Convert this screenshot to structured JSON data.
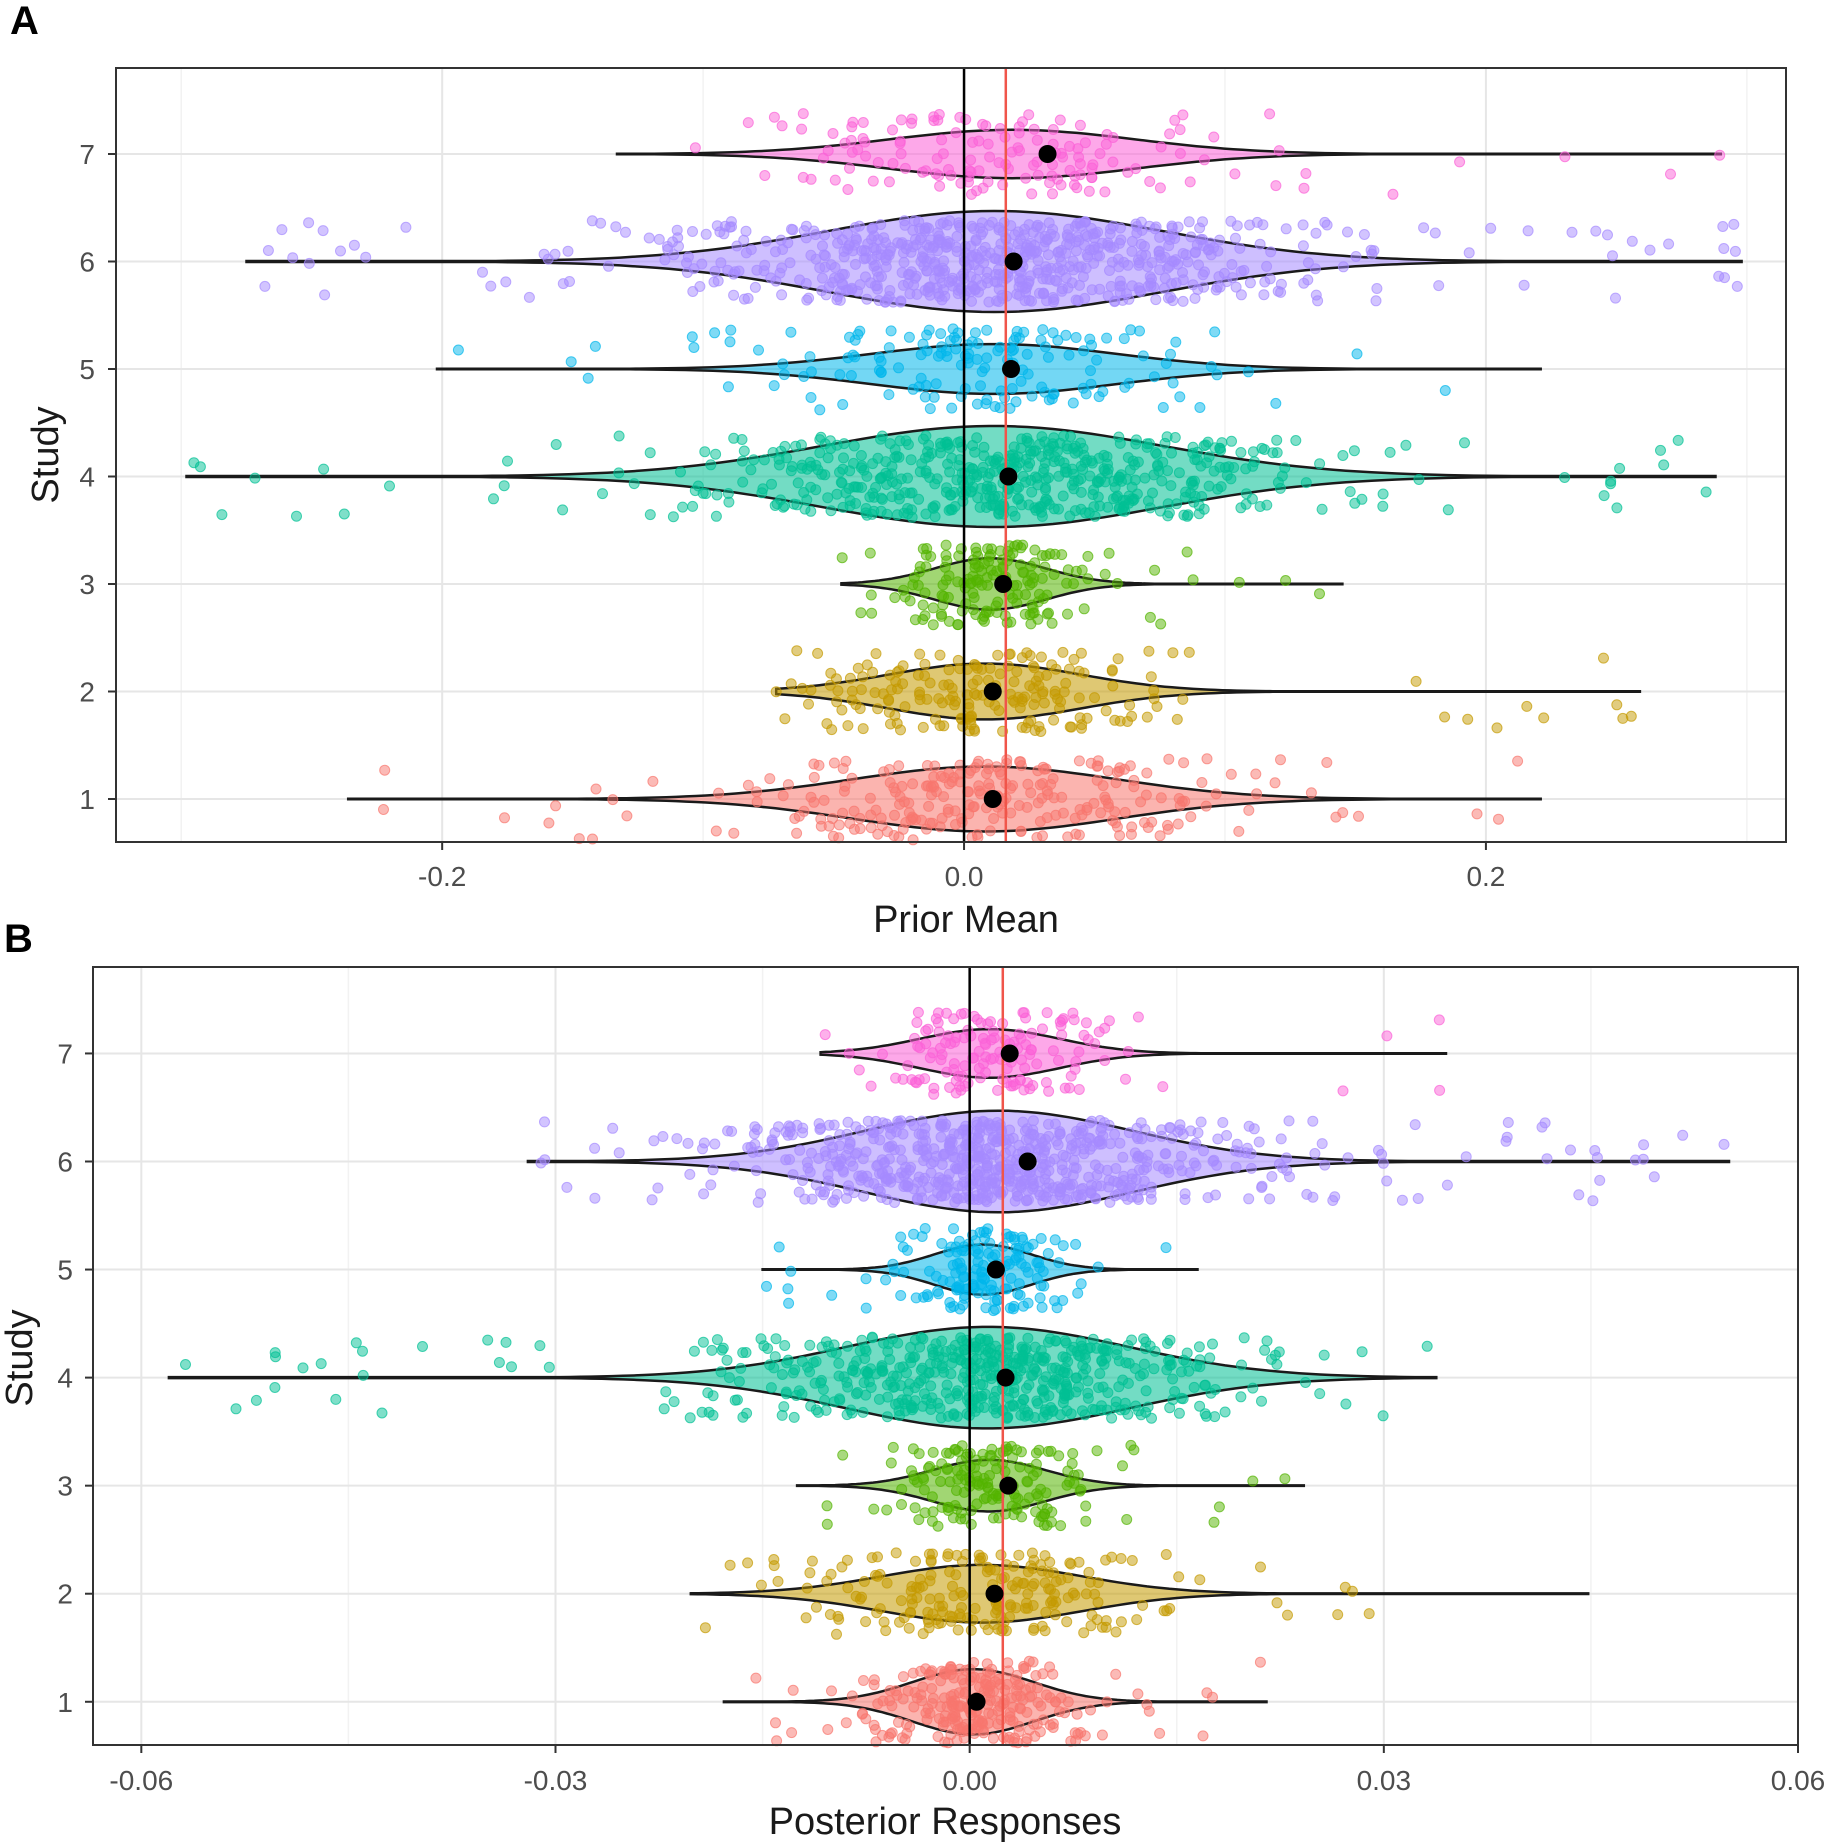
{
  "chart_data": [
    {
      "panel": "A",
      "type": "violin",
      "xlabel": "Prior Mean",
      "ylabel": "Study",
      "xlim": [
        -0.325,
        0.315
      ],
      "xticks": [
        -0.2,
        0.0,
        0.2
      ],
      "xtick_labels": [
        "-0.2",
        "0.0",
        "0.2"
      ],
      "categories": [
        "1",
        "2",
        "3",
        "4",
        "5",
        "6",
        "7"
      ],
      "vline_black": 0.0,
      "vline_red": 0.016,
      "series": [
        {
          "name": "1",
          "color": "#F8766D",
          "range": [
            -0.236,
            0.221
          ],
          "mean": 0.011,
          "n_points": 260
        },
        {
          "name": "2",
          "color": "#C49A00",
          "range": [
            -0.072,
            0.259
          ],
          "mean": 0.011,
          "n_points": 200
        },
        {
          "name": "3",
          "color": "#53B400",
          "range": [
            -0.047,
            0.145
          ],
          "mean": 0.015,
          "n_points": 170
        },
        {
          "name": "4",
          "color": "#00C094",
          "range": [
            -0.298,
            0.288
          ],
          "mean": 0.017,
          "n_points": 560
        },
        {
          "name": "5",
          "color": "#00B6EB",
          "range": [
            -0.202,
            0.221
          ],
          "mean": 0.018,
          "n_points": 160
        },
        {
          "name": "6",
          "color": "#A58AFF",
          "range": [
            -0.275,
            0.298
          ],
          "mean": 0.019,
          "n_points": 700
        },
        {
          "name": "7",
          "color": "#FB61D7",
          "range": [
            -0.133,
            0.29
          ],
          "mean": 0.032,
          "n_points": 150
        }
      ]
    },
    {
      "panel": "B",
      "type": "violin",
      "xlabel": "Posterior Responses",
      "ylabel": "Study",
      "xlim": [
        -0.0635,
        0.06
      ],
      "xticks": [
        -0.06,
        -0.03,
        0.0,
        0.03,
        0.06
      ],
      "xtick_labels": [
        "-0.06",
        "-0.03",
        "0.00",
        "0.03",
        "0.06"
      ],
      "categories": [
        "1",
        "2",
        "3",
        "4",
        "5",
        "6",
        "7"
      ],
      "vline_black": 0.0,
      "vline_red": 0.0024,
      "series": [
        {
          "name": "1",
          "color": "#F8766D",
          "range": [
            -0.0178,
            0.0215
          ],
          "mean": 0.0005,
          "n_points": 260
        },
        {
          "name": "2",
          "color": "#C49A00",
          "range": [
            -0.0202,
            0.0448
          ],
          "mean": 0.0018,
          "n_points": 210
        },
        {
          "name": "3",
          "color": "#53B400",
          "range": [
            -0.0125,
            0.0242
          ],
          "mean": 0.0028,
          "n_points": 170
        },
        {
          "name": "4",
          "color": "#00C094",
          "range": [
            -0.058,
            0.0338
          ],
          "mean": 0.0026,
          "n_points": 560
        },
        {
          "name": "5",
          "color": "#00B6EB",
          "range": [
            -0.015,
            0.0165
          ],
          "mean": 0.0019,
          "n_points": 160
        },
        {
          "name": "6",
          "color": "#A58AFF",
          "range": [
            -0.032,
            0.055
          ],
          "mean": 0.0042,
          "n_points": 700
        },
        {
          "name": "7",
          "color": "#FB61D7",
          "range": [
            -0.0108,
            0.0345
          ],
          "mean": 0.0029,
          "n_points": 150
        }
      ]
    }
  ]
}
